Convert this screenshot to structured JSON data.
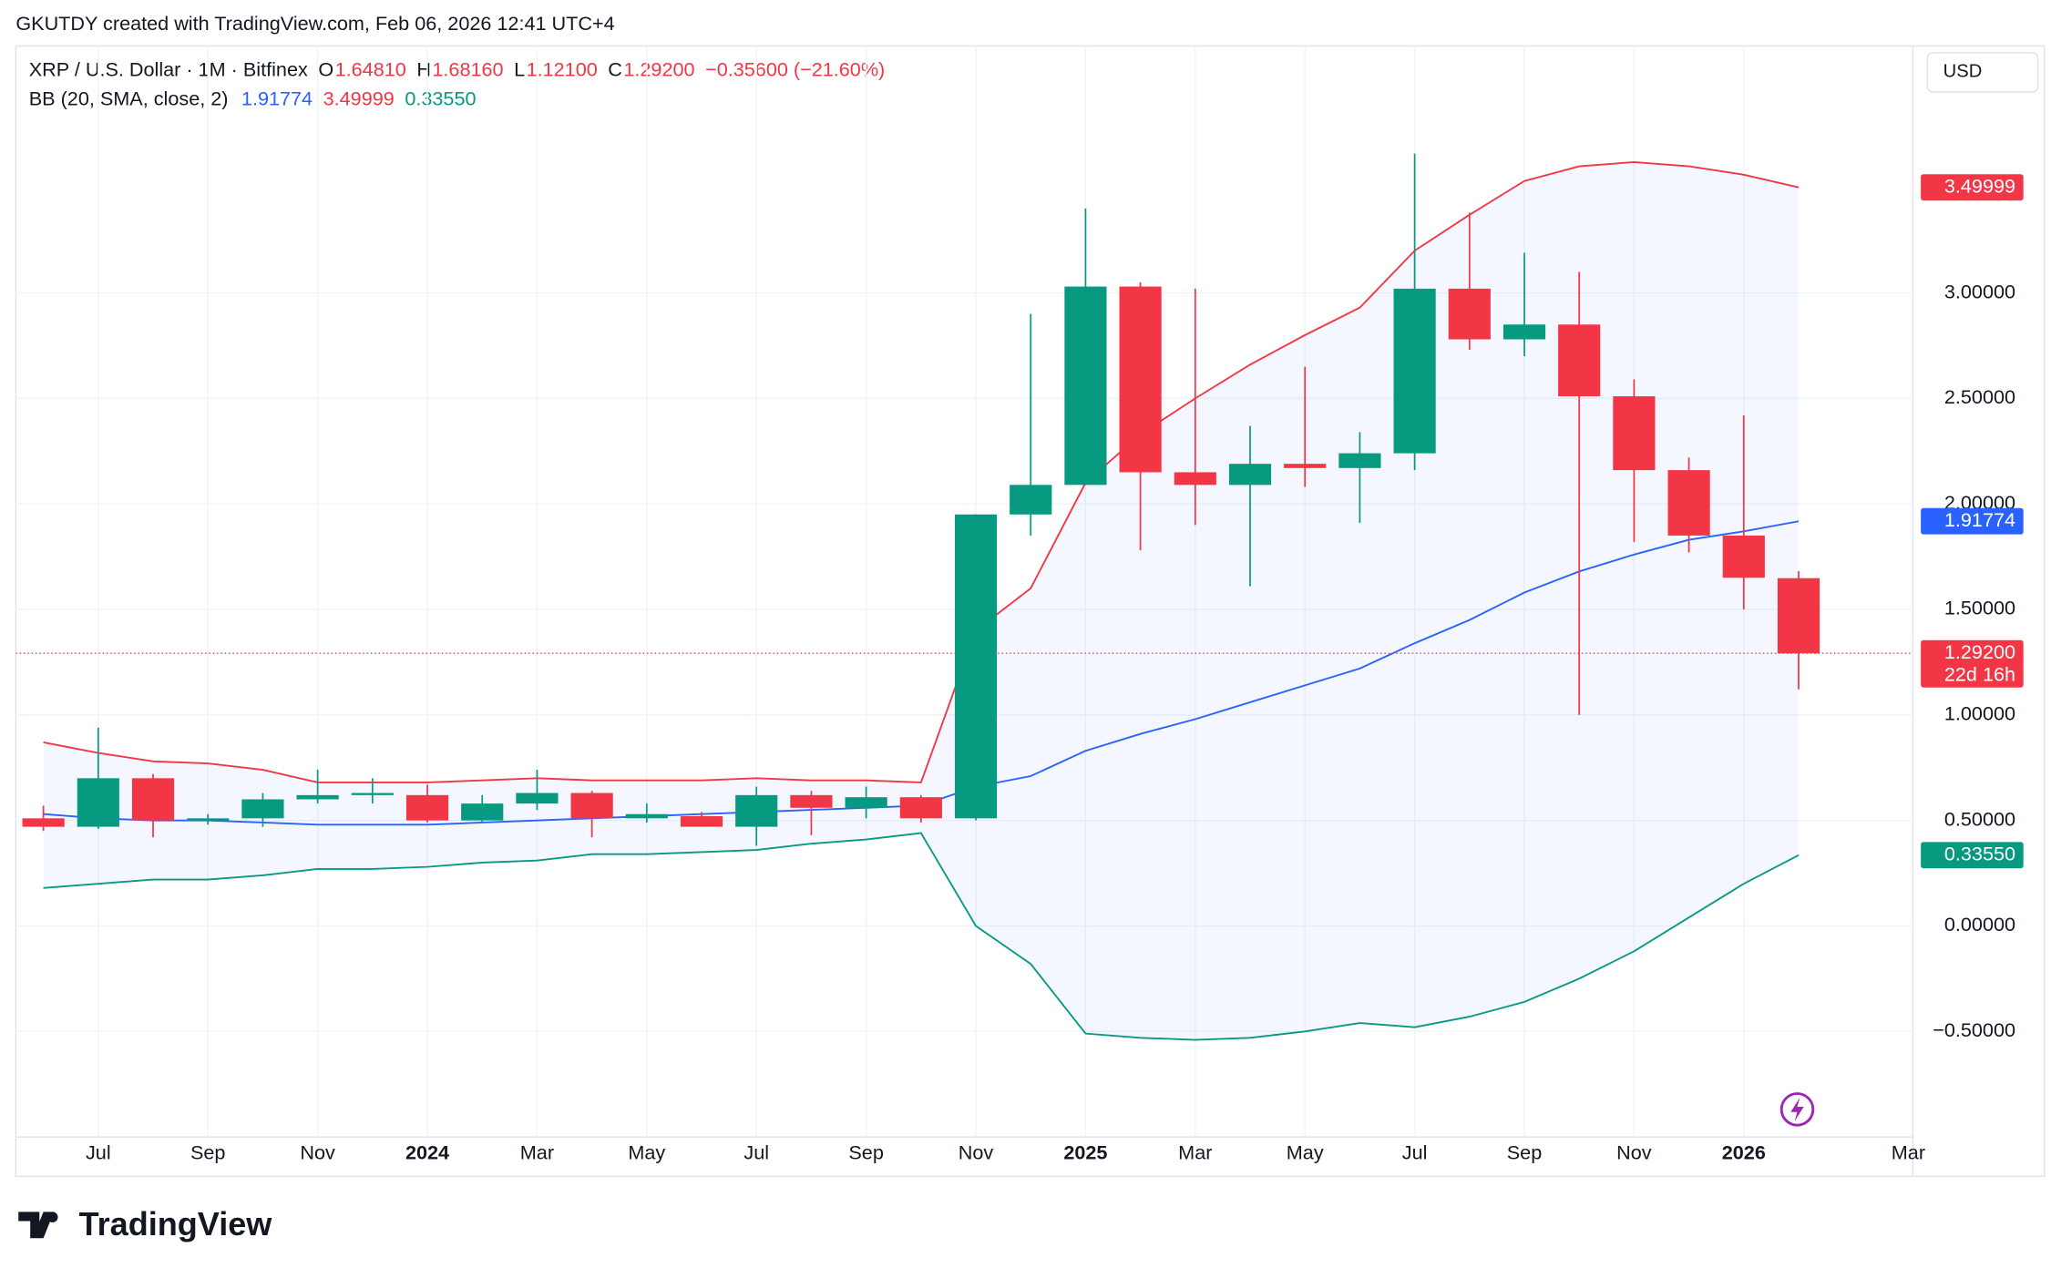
{
  "header": {
    "credit": "GKUTDY created with TradingView.com, Feb 06, 2026 12:41 UTC+4",
    "symbol": "XRP / U.S. Dollar · 1M · Bitfinex",
    "ohlc": [
      {
        "key": "O",
        "value": "1.64810"
      },
      {
        "key": "H",
        "value": "1.68160"
      },
      {
        "key": "L",
        "value": "1.12100"
      },
      {
        "key": "C",
        "value": "1.29200"
      }
    ],
    "change": "−0.35600 (−21.60%)",
    "indicator": "BB (20, SMA, close, 2)",
    "indicator_values": [
      {
        "value": "1.91774",
        "color": "#2962ff"
      },
      {
        "value": "3.49999",
        "color": "#f23645"
      },
      {
        "value": "0.33550",
        "color": "#089981"
      }
    ],
    "currency": "USD",
    "brand": "TradingView"
  },
  "chart_data": {
    "type": "candlestick",
    "categories": [
      null,
      "Jul",
      null,
      "Sep",
      null,
      "Nov",
      null,
      "2024",
      null,
      "Mar",
      null,
      "May",
      null,
      "Jul",
      null,
      "Sep",
      null,
      "Nov",
      null,
      "2025",
      null,
      "Mar",
      null,
      "May",
      null,
      "Jul",
      null,
      "Sep",
      null,
      "Nov",
      null,
      "2026",
      null
    ],
    "extra_axis_labels": [
      "Mar"
    ],
    "open": [
      0.51,
      0.47,
      0.7,
      0.5,
      0.51,
      0.6,
      0.62,
      0.62,
      0.5,
      0.58,
      0.63,
      0.51,
      0.52,
      0.47,
      0.62,
      0.56,
      0.61,
      0.51,
      1.95,
      2.09,
      3.03,
      2.15,
      2.09,
      2.19,
      2.17,
      2.24,
      3.02,
      2.78,
      2.85,
      2.51,
      2.16,
      1.85,
      1.6481
    ],
    "high": [
      0.57,
      0.94,
      0.72,
      0.53,
      0.63,
      0.74,
      0.7,
      0.67,
      0.62,
      0.74,
      0.64,
      0.58,
      0.54,
      0.66,
      0.64,
      0.66,
      0.62,
      1.95,
      2.9,
      3.4,
      3.05,
      3.02,
      2.37,
      2.65,
      2.34,
      3.66,
      3.38,
      3.19,
      3.1,
      2.59,
      2.22,
      2.42,
      1.6816
    ],
    "low": [
      0.45,
      0.46,
      0.42,
      0.48,
      0.47,
      0.58,
      0.58,
      0.49,
      0.49,
      0.55,
      0.42,
      0.49,
      0.47,
      0.38,
      0.43,
      0.51,
      0.49,
      0.5,
      1.85,
      2.09,
      1.78,
      1.9,
      1.61,
      2.08,
      1.91,
      2.16,
      2.73,
      2.7,
      1.0,
      1.82,
      1.77,
      1.5,
      1.121
    ],
    "close": [
      0.47,
      0.7,
      0.5,
      0.51,
      0.6,
      0.62,
      0.63,
      0.5,
      0.58,
      0.63,
      0.51,
      0.53,
      0.47,
      0.62,
      0.56,
      0.61,
      0.51,
      1.95,
      2.09,
      3.03,
      2.15,
      2.09,
      2.19,
      2.17,
      2.24,
      3.02,
      2.78,
      2.85,
      2.51,
      2.16,
      1.85,
      1.65,
      1.292
    ],
    "up_color": "#089981",
    "down_color": "#f23645",
    "bands": {
      "upper": {
        "color": "#f23645",
        "values": [
          0.87,
          0.82,
          0.78,
          0.77,
          0.74,
          0.68,
          0.68,
          0.68,
          0.69,
          0.7,
          0.69,
          0.69,
          0.69,
          0.7,
          0.69,
          0.69,
          0.68,
          1.4,
          1.6,
          2.1,
          2.33,
          2.5,
          2.66,
          2.8,
          2.93,
          3.2,
          3.37,
          3.53,
          3.6,
          3.62,
          3.6,
          3.56,
          3.49999
        ]
      },
      "middle": {
        "color": "#2962ff",
        "values": [
          0.53,
          0.51,
          0.5,
          0.5,
          0.49,
          0.48,
          0.48,
          0.48,
          0.49,
          0.5,
          0.51,
          0.52,
          0.53,
          0.54,
          0.55,
          0.56,
          0.57,
          0.66,
          0.71,
          0.83,
          0.91,
          0.98,
          1.06,
          1.14,
          1.22,
          1.34,
          1.45,
          1.58,
          1.68,
          1.76,
          1.83,
          1.87,
          1.91774
        ]
      },
      "lower": {
        "color": "#089981",
        "values": [
          0.18,
          0.2,
          0.22,
          0.22,
          0.24,
          0.27,
          0.27,
          0.28,
          0.3,
          0.31,
          0.34,
          0.34,
          0.35,
          0.36,
          0.39,
          0.41,
          0.44,
          0.0,
          -0.18,
          -0.51,
          -0.53,
          -0.54,
          -0.53,
          -0.5,
          -0.46,
          -0.48,
          -0.43,
          -0.36,
          -0.25,
          -0.12,
          0.04,
          0.2,
          0.3355
        ]
      },
      "fill": "#2962ff"
    },
    "ylim": [
      -1.0,
      4.17
    ],
    "yticks": [
      {
        "value": -0.5,
        "label": "−0.50000"
      },
      {
        "value": 0,
        "label": "0.00000"
      },
      {
        "value": 0.5,
        "label": "0.50000"
      },
      {
        "value": 1.0,
        "label": "1.00000"
      },
      {
        "value": 1.5,
        "label": "1.50000"
      },
      {
        "value": 2.0,
        "label": "2.00000"
      },
      {
        "value": 2.5,
        "label": "2.50000"
      },
      {
        "value": 3.0,
        "label": "3.00000"
      }
    ],
    "grid": true,
    "price_labels": [
      {
        "value": 3.49999,
        "label": "3.49999",
        "color": "#f23645"
      },
      {
        "value": 1.91774,
        "label": "1.91774",
        "color": "#2962ff"
      },
      {
        "value": 1.292,
        "label": "1.29200",
        "sub": "22d 16h",
        "color": "#f23645"
      },
      {
        "value": 0.3355,
        "label": "0.33550",
        "color": "#089981"
      }
    ],
    "last_price_line": {
      "value": 1.292,
      "color": "#f23645"
    }
  }
}
